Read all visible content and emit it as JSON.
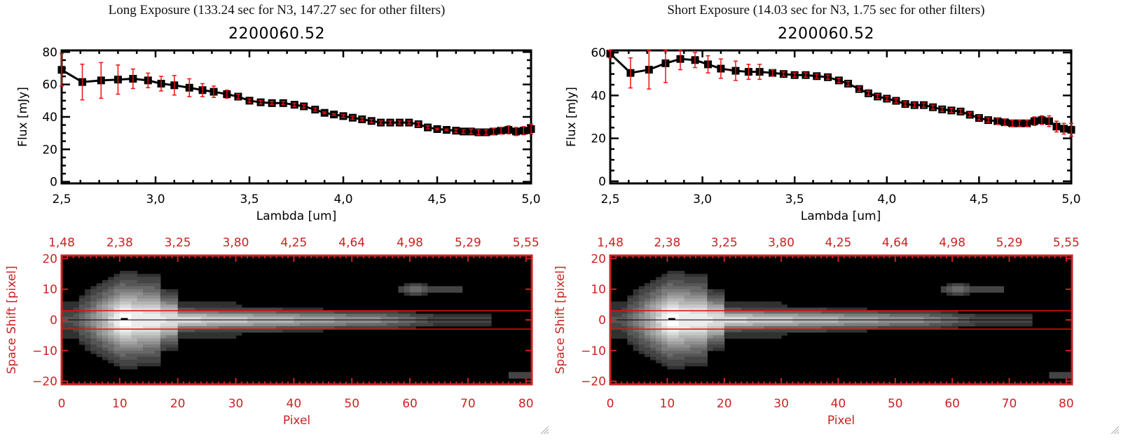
{
  "panels": [
    {
      "id": "long",
      "exposure_title": "Long Exposure (133.24 sec for N3, 147.27 sec for other filters)",
      "object_title": "2200060.52"
    },
    {
      "id": "short",
      "exposure_title": "Short Exposure (14.03 sec for N3, 1.75 sec for other filters)",
      "object_title": "2200060.52"
    }
  ],
  "colors": {
    "axis_black": "#000000",
    "errorbar_red": "#ee1111",
    "image_axis_red": "#cc2222",
    "aperture_line_red": "#dd1111",
    "image_background": "#000000"
  },
  "chart_data": [
    {
      "type": "line",
      "panel": "long",
      "title": "2200060.52",
      "xlabel": "Lambda [um]",
      "ylabel": "Flux [mJy]",
      "xlim": [
        2.5,
        5.0
      ],
      "ylim": [
        -1,
        81
      ],
      "xticks": [
        "2.5",
        "3.0",
        "3.5",
        "4.0",
        "4.5",
        "5.0"
      ],
      "yticks": [
        "0",
        "20",
        "40",
        "60",
        "80"
      ],
      "marker": "filled-square",
      "series": [
        {
          "name": "flux",
          "x": [
            2.5,
            2.61,
            2.71,
            2.8,
            2.88,
            2.96,
            3.03,
            3.1,
            3.18,
            3.25,
            3.31,
            3.38,
            3.44,
            3.5,
            3.56,
            3.62,
            3.68,
            3.74,
            3.79,
            3.85,
            3.9,
            3.95,
            4.0,
            4.05,
            4.1,
            4.15,
            4.2,
            4.25,
            4.3,
            4.35,
            4.4,
            4.45,
            4.5,
            4.55,
            4.6,
            4.64,
            4.68,
            4.72,
            4.76,
            4.8,
            4.84,
            4.88,
            4.92,
            4.96,
            5.0
          ],
          "y": [
            69,
            61.5,
            62.5,
            63,
            63.5,
            62.5,
            60.5,
            59.5,
            58,
            56.5,
            55.5,
            54,
            52.5,
            50,
            49,
            48.5,
            48.5,
            47.5,
            46.5,
            44.5,
            42.5,
            41.5,
            40.5,
            39.5,
            38.5,
            37.5,
            36.5,
            36.5,
            36.5,
            36.5,
            35.5,
            33.5,
            32.5,
            32,
            31.5,
            31,
            31,
            30.5,
            30.5,
            31,
            31.5,
            32,
            31,
            31.5,
            32.5
          ],
          "err": [
            10,
            11,
            11,
            9,
            6,
            4.5,
            4.5,
            6,
            5.5,
            4,
            3.5,
            2.5,
            1.5,
            1,
            1,
            1,
            1,
            1,
            1,
            1,
            0.5,
            0.5,
            0.8,
            1,
            1,
            1,
            1,
            1,
            1,
            1,
            1.2,
            1,
            0.5,
            0.5,
            1,
            1,
            1.5,
            1.5,
            1.5,
            2,
            2,
            2.5,
            2.5,
            2.5,
            3
          ]
        }
      ]
    },
    {
      "type": "heatmap",
      "panel": "long",
      "xlabel": "Pixel",
      "ylabel": "Space Shift [pixel]",
      "xlim": [
        0,
        81
      ],
      "ylim": [
        -21,
        21
      ],
      "xticks": [
        "0",
        "10",
        "20",
        "30",
        "40",
        "50",
        "60",
        "70",
        "80"
      ],
      "yticks": [
        "-20",
        "-10",
        "0",
        "10",
        "20"
      ],
      "top_axis_ticks": [
        "1.48",
        "2.38",
        "3.25",
        "3.80",
        "4.25",
        "4.64",
        "4.98",
        "5.29",
        "5.55"
      ],
      "aperture_lines": [
        3,
        -3
      ],
      "center_line": 0,
      "features": [
        {
          "name": "spectral-trace",
          "x_range": [
            0,
            73
          ],
          "y_center": 0,
          "peak_x": 11
        },
        {
          "name": "secondary-source",
          "x": 61,
          "y": 10
        },
        {
          "name": "corner-source",
          "x": 79,
          "y": -18
        }
      ]
    },
    {
      "type": "line",
      "panel": "short",
      "title": "2200060.52",
      "xlabel": "Lambda [um]",
      "ylabel": "Flux [mJy]",
      "xlim": [
        2.5,
        5.0
      ],
      "ylim": [
        -1,
        61
      ],
      "xticks": [
        "2.5",
        "3.0",
        "3.5",
        "4.0",
        "4.5",
        "5.0"
      ],
      "yticks": [
        "0",
        "20",
        "40",
        "60"
      ],
      "marker": "filled-square",
      "series": [
        {
          "name": "flux",
          "x": [
            2.5,
            2.61,
            2.71,
            2.8,
            2.88,
            2.96,
            3.03,
            3.1,
            3.18,
            3.25,
            3.31,
            3.38,
            3.44,
            3.5,
            3.56,
            3.62,
            3.68,
            3.74,
            3.79,
            3.85,
            3.9,
            3.95,
            4.0,
            4.05,
            4.1,
            4.15,
            4.2,
            4.25,
            4.3,
            4.35,
            4.4,
            4.45,
            4.5,
            4.55,
            4.6,
            4.64,
            4.68,
            4.72,
            4.76,
            4.8,
            4.84,
            4.88,
            4.92,
            4.96,
            5.0
          ],
          "y": [
            59.5,
            50.5,
            52,
            55,
            57,
            56.5,
            54.5,
            52.5,
            51.5,
            51,
            51,
            50.5,
            50,
            49.5,
            49.5,
            49,
            48.5,
            47,
            45.5,
            43,
            41,
            39.5,
            38.5,
            37.5,
            36,
            35.5,
            35.5,
            34.5,
            33.5,
            33,
            32.5,
            31,
            29.5,
            28.5,
            28,
            27.5,
            27,
            27,
            27,
            28,
            28.5,
            28,
            25.5,
            24.5,
            24
          ],
          "err": [
            2,
            7,
            9,
            9,
            5,
            3.5,
            4,
            4.5,
            4.5,
            3.5,
            3.5,
            1.5,
            1,
            1,
            1,
            1,
            1,
            1,
            1,
            1,
            1,
            1,
            1,
            1,
            1,
            1,
            1,
            1,
            1,
            1,
            1,
            1,
            1,
            1,
            1.5,
            1.5,
            1.5,
            1.5,
            1.5,
            2,
            2,
            2.5,
            2.5,
            2.5,
            3
          ]
        }
      ]
    },
    {
      "type": "heatmap",
      "panel": "short",
      "xlabel": "Pixel",
      "ylabel": "Space Shift [pixel]",
      "xlim": [
        0,
        81
      ],
      "ylim": [
        -21,
        21
      ],
      "xticks": [
        "0",
        "10",
        "20",
        "30",
        "40",
        "50",
        "60",
        "70",
        "80"
      ],
      "yticks": [
        "-20",
        "-10",
        "0",
        "10",
        "20"
      ],
      "top_axis_ticks": [
        "1.48",
        "2.38",
        "3.25",
        "3.80",
        "4.25",
        "4.64",
        "4.98",
        "5.29",
        "5.55"
      ],
      "aperture_lines": [
        3,
        -3
      ],
      "center_line": 0,
      "features": [
        {
          "name": "spectral-trace",
          "x_range": [
            0,
            73
          ],
          "y_center": 0,
          "peak_x": 11
        },
        {
          "name": "secondary-source",
          "x": 61,
          "y": 10
        },
        {
          "name": "corner-source",
          "x": 79,
          "y": -18
        }
      ]
    }
  ]
}
